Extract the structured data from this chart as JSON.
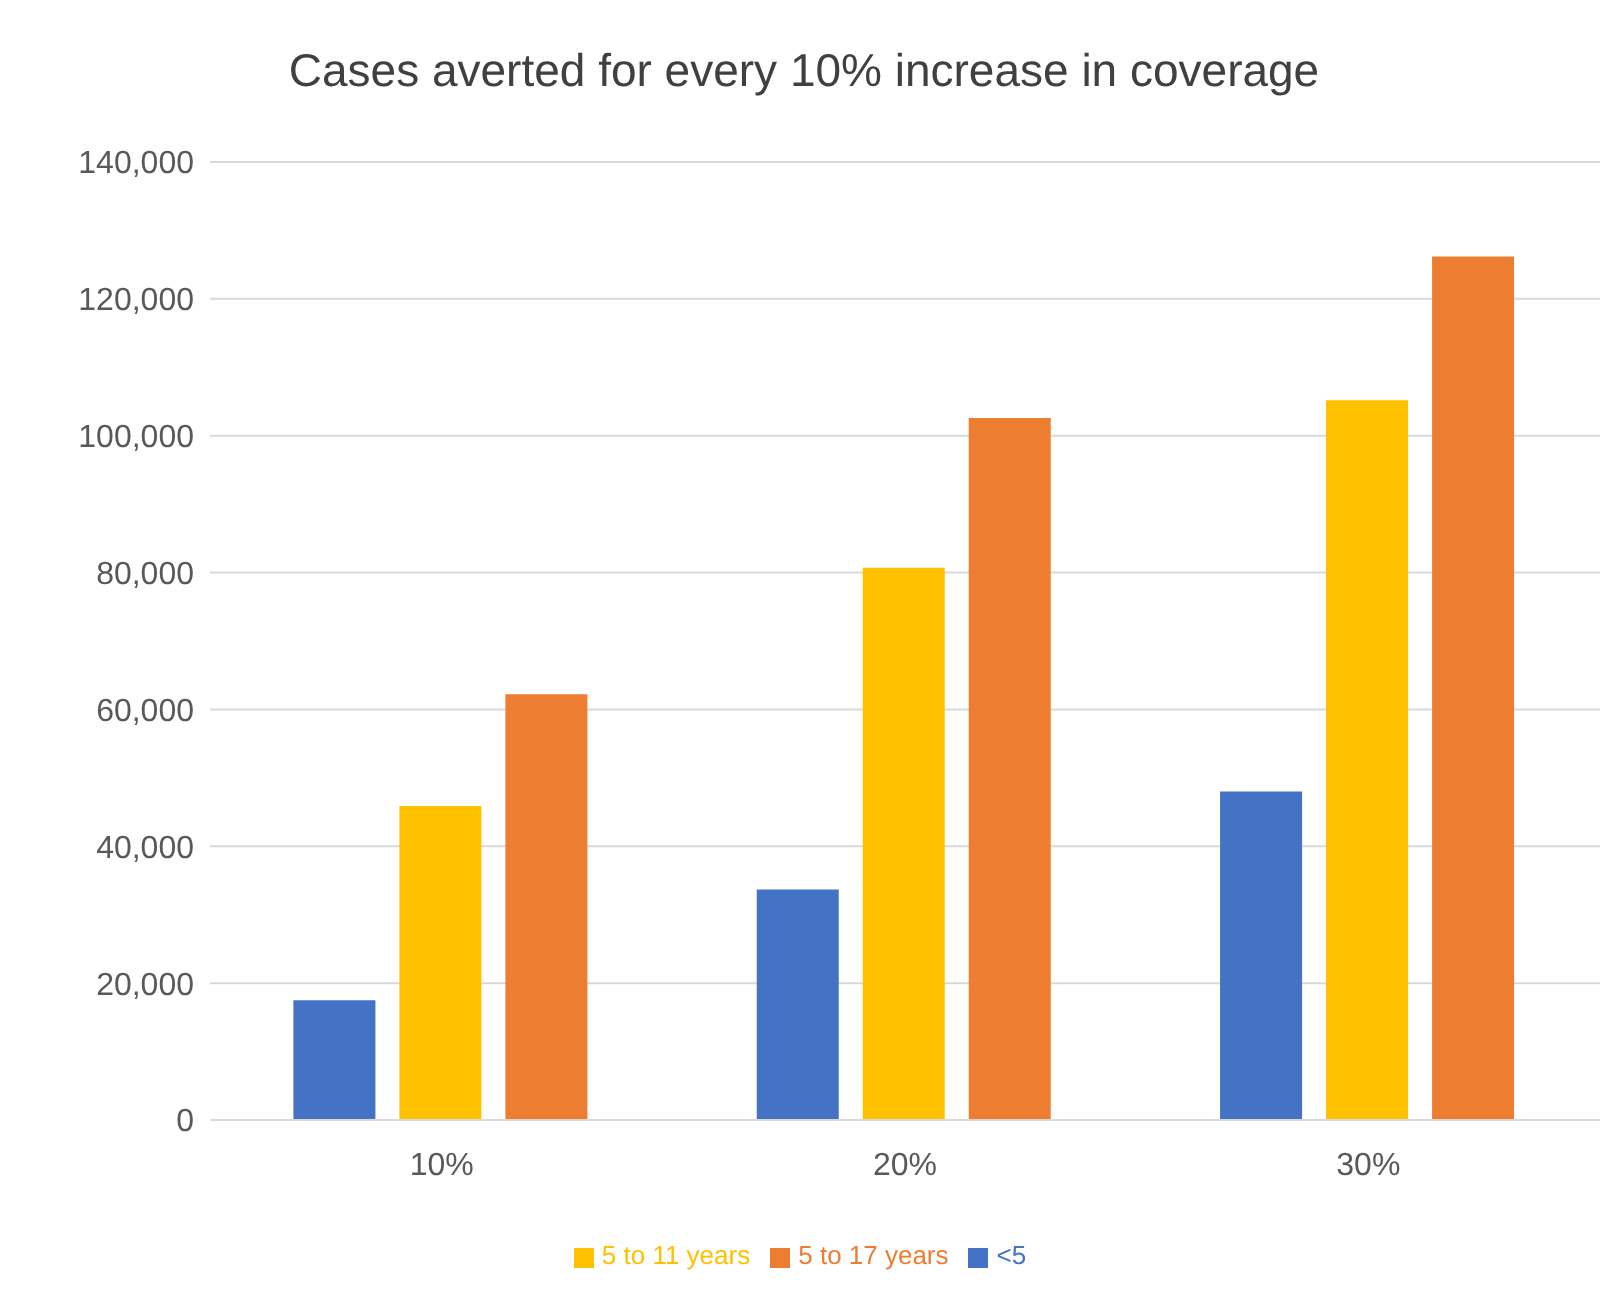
{
  "chart_data": {
    "type": "bar",
    "title": "Cases averted for every 10% increase in coverage",
    "categories": [
      "10%",
      "20%",
      "30%"
    ],
    "series": [
      {
        "name": "<5",
        "color": "#4472c4",
        "values": [
          17500,
          33700,
          48000
        ]
      },
      {
        "name": "5 to 11 years",
        "color": "#ffc000",
        "values": [
          45900,
          80700,
          105200
        ]
      },
      {
        "name": "5 to 17 years",
        "color": "#ed7d31",
        "values": [
          62200,
          102600,
          126200
        ]
      }
    ],
    "ylim": [
      0,
      140000
    ],
    "yticks": [
      {
        "value": 0,
        "label": "0"
      },
      {
        "value": 20000,
        "label": "20,000"
      },
      {
        "value": 40000,
        "label": "40,000"
      },
      {
        "value": 60000,
        "label": "60,000"
      },
      {
        "value": 80000,
        "label": "80,000"
      },
      {
        "value": 100000,
        "label": "100,000"
      },
      {
        "value": 120000,
        "label": "120,000"
      },
      {
        "value": 140000,
        "label": "140,000"
      }
    ],
    "grid": "y",
    "legend": "bottom"
  }
}
